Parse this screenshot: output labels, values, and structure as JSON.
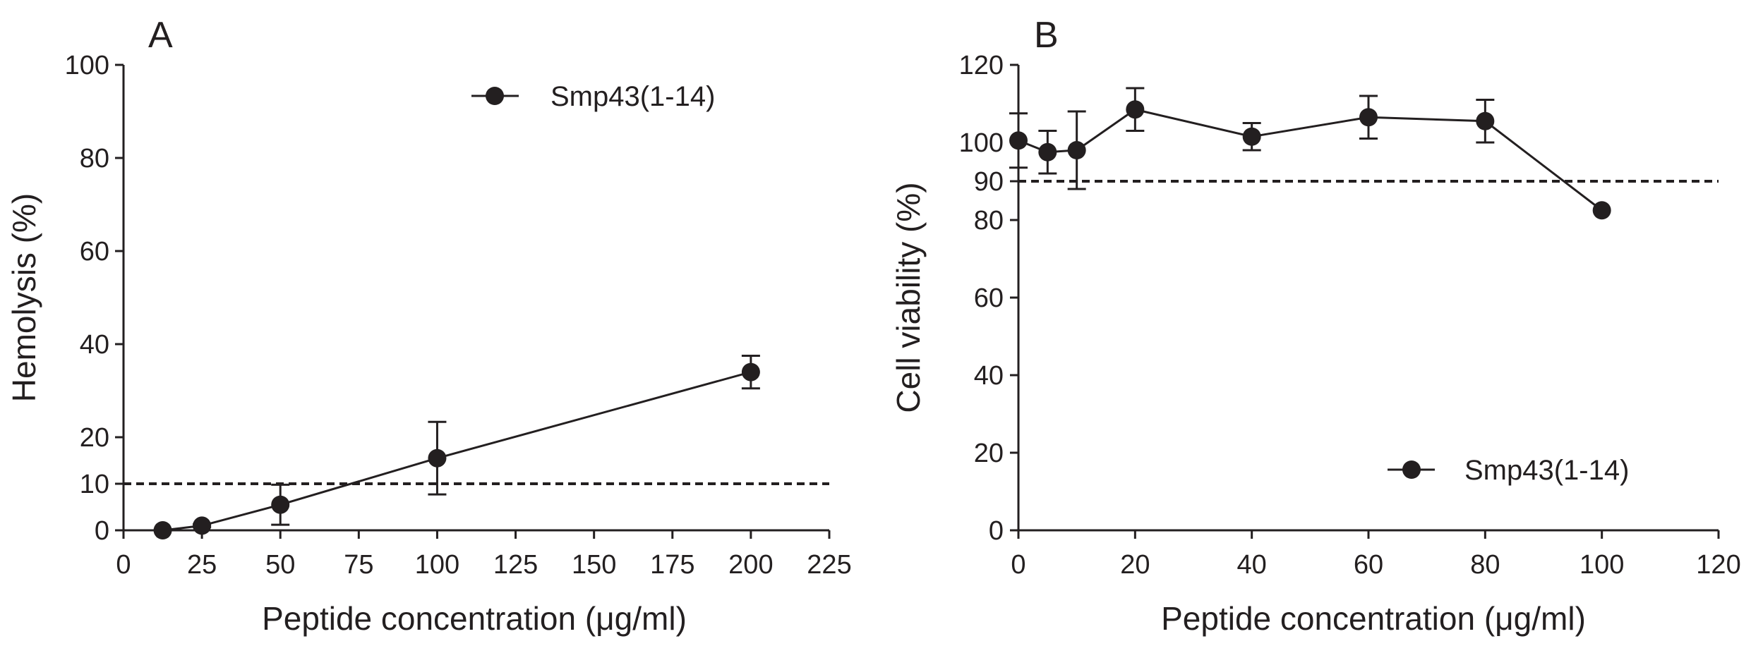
{
  "chart_data": [
    {
      "panel": "A",
      "type": "line",
      "series": [
        {
          "name": "Smp43(1-14)",
          "x": [
            12.5,
            25,
            50,
            100,
            200
          ],
          "y": [
            0,
            1,
            5.5,
            15.5,
            34
          ],
          "err": [
            0,
            0.3,
            4.3,
            7.8,
            3.5
          ]
        }
      ],
      "threshold": 10,
      "xlabel": "Peptide concentration (μg/ml)",
      "ylabel": "Hemolysis (%)",
      "xlim": [
        0,
        225
      ],
      "ylim": [
        0,
        100
      ],
      "xticks": [
        0,
        25,
        50,
        75,
        100,
        125,
        150,
        175,
        200,
        225
      ],
      "yticks": [
        0,
        10,
        20,
        40,
        60,
        80,
        100
      ],
      "legend": "top-right",
      "grid": false,
      "color": "#231f20"
    },
    {
      "panel": "B",
      "type": "line",
      "series": [
        {
          "name": "Smp43(1-14)",
          "x": [
            0,
            5,
            10,
            20,
            40,
            60,
            80,
            100
          ],
          "y": [
            100.5,
            97.5,
            98,
            108.5,
            101.5,
            106.5,
            105.5,
            82.5
          ],
          "err": [
            7,
            5.5,
            10,
            5.5,
            3.5,
            5.5,
            5.5,
            0
          ]
        }
      ],
      "threshold": 90,
      "xlabel": "Peptide concentration (μg/ml)",
      "ylabel": "Cell viability (%)",
      "xlim": [
        0,
        120
      ],
      "ylim": [
        0,
        120
      ],
      "xticks": [
        0,
        20,
        40,
        60,
        80,
        100,
        120
      ],
      "yticks": [
        0,
        20,
        40,
        60,
        80,
        90,
        100,
        120
      ],
      "legend": "bottom-right",
      "grid": false,
      "color": "#231f20"
    }
  ]
}
